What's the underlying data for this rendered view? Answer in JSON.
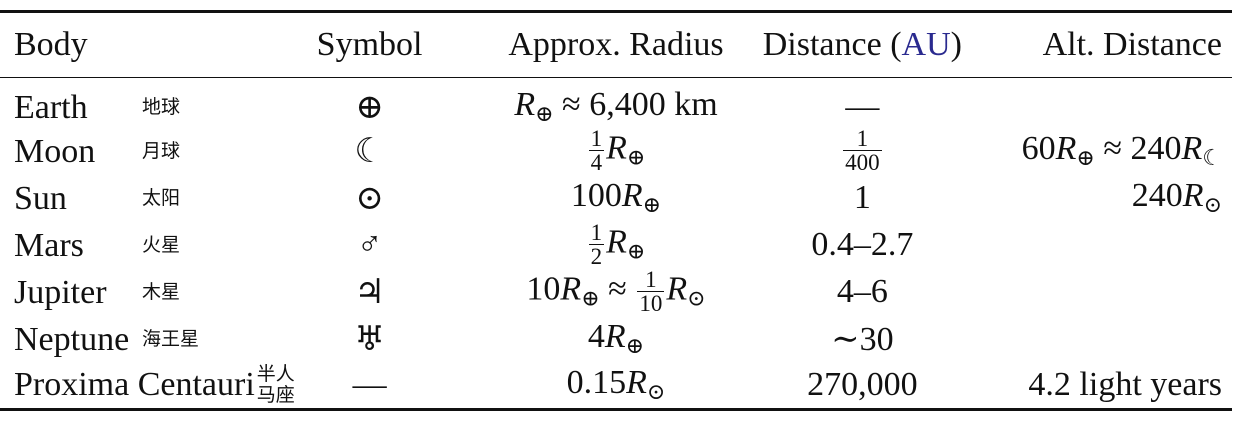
{
  "table": {
    "header": [
      "Body",
      "Symbol",
      "Approx. Radius",
      [
        "Distance (",
        {
          "link": "AU"
        },
        ")"
      ],
      "Alt. Distance"
    ],
    "rows": [
      {
        "name": "Earth",
        "cn": [
          "地球"
        ],
        "symbol": "⊕",
        "radius": [
          {
            "i": "R"
          },
          {
            "sub": "⊕"
          },
          " ≈ 6,400 km"
        ],
        "distance": [
          "—"
        ],
        "alt": null
      },
      {
        "name": "Moon",
        "cn": [
          "月球"
        ],
        "symbol": "☾",
        "radius": [
          {
            "frac": [
              "1",
              "4"
            ]
          },
          {
            "i": "R"
          },
          {
            "sub": "⊕"
          }
        ],
        "distance": [
          {
            "frac": [
              "1",
              "400"
            ]
          }
        ],
        "alt": [
          "60",
          {
            "i": "R"
          },
          {
            "sub": "⊕"
          },
          " ≈ 240",
          {
            "i": "R"
          },
          {
            "sub": "☾"
          }
        ]
      },
      {
        "name": "Sun",
        "cn": [
          "太阳"
        ],
        "symbol": "⊙",
        "radius": [
          "100",
          {
            "i": "R"
          },
          {
            "sub": "⊕"
          }
        ],
        "distance": [
          "1"
        ],
        "alt": [
          "240",
          {
            "i": "R"
          },
          {
            "sub": "⊙"
          }
        ]
      },
      {
        "name": "Mars",
        "cn": [
          "火星"
        ],
        "symbol": "♂",
        "radius": [
          {
            "frac": [
              "1",
              "2"
            ]
          },
          {
            "i": "R"
          },
          {
            "sub": "⊕"
          }
        ],
        "distance": [
          "0.4–2.7"
        ],
        "alt": null
      },
      {
        "name": "Jupiter",
        "cn": [
          "木星"
        ],
        "symbol": "♃",
        "radius": [
          "10",
          {
            "i": "R"
          },
          {
            "sub": "⊕"
          },
          " ≈ ",
          {
            "frac": [
              "1",
              "10"
            ]
          },
          {
            "i": "R"
          },
          {
            "sub": "⊙"
          }
        ],
        "distance": [
          "4–6"
        ],
        "alt": null
      },
      {
        "name": "Neptune",
        "cn": [
          "海王星"
        ],
        "symbol": "♅",
        "radius": [
          "4",
          {
            "i": "R"
          },
          {
            "sub": "⊕"
          }
        ],
        "distance": [
          "∼30"
        ],
        "alt": null
      },
      {
        "name": "Proxima Centauri",
        "cn": [
          "半人",
          "马座"
        ],
        "symbol": "—",
        "radius": [
          "0.15",
          {
            "i": "R"
          },
          {
            "sub": "⊙"
          }
        ],
        "distance": [
          "270,000"
        ],
        "alt": [
          "4.2 light years"
        ]
      }
    ]
  }
}
